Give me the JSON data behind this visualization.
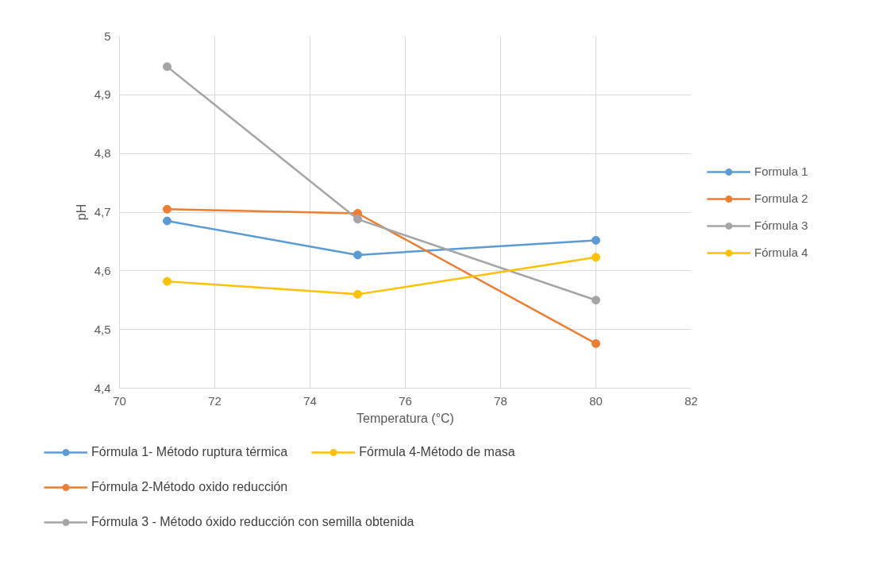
{
  "chart_data": {
    "type": "line",
    "xlabel": "Temperatura (°C)",
    "ylabel": "pH",
    "x": [
      71,
      75,
      80
    ],
    "series": [
      {
        "name": "Formula 1",
        "color": "#5b9bd5",
        "values": [
          4.685,
          4.627,
          4.652
        ]
      },
      {
        "name": "Formula 2",
        "color": "#ed7d31",
        "values": [
          4.705,
          4.698,
          4.476
        ]
      },
      {
        "name": "Fórmula 3",
        "color": "#a5a5a5",
        "values": [
          4.948,
          4.688,
          4.55
        ]
      },
      {
        "name": "Fórmula 4",
        "color": "#ffc000",
        "values": [
          4.582,
          4.56,
          4.623
        ]
      }
    ],
    "xlim": [
      70,
      82
    ],
    "xticks": [
      70,
      72,
      74,
      76,
      78,
      80,
      82
    ],
    "ylim": [
      4.4,
      5
    ],
    "yticks": [
      {
        "value": 4.4,
        "label": "4,4"
      },
      {
        "value": 4.5,
        "label": "4,5"
      },
      {
        "value": 4.6,
        "label": "4,6"
      },
      {
        "value": 4.7,
        "label": "4,7"
      },
      {
        "value": 4.8,
        "label": "4,8"
      },
      {
        "value": 4.9,
        "label": "4,9"
      },
      {
        "value": 5,
        "label": "5"
      }
    ],
    "grid": true,
    "legend": "right",
    "marker": "circle",
    "line_style": "solid",
    "annotations": [
      "Fórmula 1- Método ruptura térmica",
      "Fórmula 2-Método oxido reducción",
      "Fórmula 3 - Método óxido reducción con semilla obtenida",
      "Fórmula 4-Método de masa"
    ]
  }
}
